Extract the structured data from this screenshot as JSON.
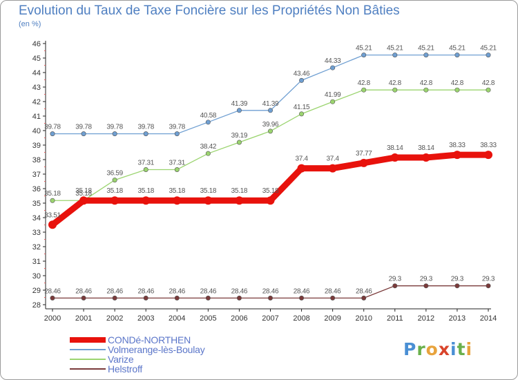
{
  "title": "Evolution du Taux de Taxe Foncière sur les Propriétés Non Bâties",
  "subtitle": "(en %)",
  "logo": {
    "text": "Proxiti",
    "letters": [
      {
        "char": "P",
        "color": "#4a8fd4"
      },
      {
        "char": "r",
        "color": "#6ab04c"
      },
      {
        "char": "o",
        "color": "#e8a33d"
      },
      {
        "char": "x",
        "color": "#d9442b"
      },
      {
        "char": "i",
        "color": "#4a8fd4"
      },
      {
        "char": "t",
        "color": "#6ab04c"
      },
      {
        "char": "i",
        "color": "#e8a33d"
      }
    ]
  },
  "chart_data": {
    "type": "line",
    "title": "Evolution du Taux de Taxe Foncière sur les Propriétés Non Bâties",
    "ylabel": "(en %)",
    "xlabel": "",
    "ylim": [
      28,
      46
    ],
    "ytick_step": 1,
    "grid": false,
    "legend_position": "bottom-left",
    "x": [
      "2000",
      "2001",
      "2002",
      "2003",
      "2004",
      "2005",
      "2006",
      "2007",
      "2008",
      "2009",
      "2010",
      "2011",
      "2012",
      "2013",
      "2014"
    ],
    "series": [
      {
        "name": "CONDé-NORTHEN",
        "color": "#e8120c",
        "emphasis": true,
        "values": [
          33.51,
          35.18,
          35.18,
          35.18,
          35.18,
          35.18,
          35.18,
          35.18,
          37.4,
          37.4,
          37.77,
          38.14,
          38.14,
          38.33,
          38.33
        ],
        "labels": [
          "33.51",
          "35.18",
          "35.18",
          "35.18",
          "35.18",
          "35.18",
          "35.18",
          "35.18",
          "37.4",
          "37.4",
          "37.77",
          "38.14",
          "38.14",
          "38.33",
          "38.33"
        ]
      },
      {
        "name": "Volmerange-lès-Boulay",
        "color": "#6f9fd2",
        "emphasis": false,
        "values": [
          39.78,
          39.78,
          39.78,
          39.78,
          39.78,
          40.58,
          41.39,
          41.39,
          43.46,
          44.33,
          45.21,
          45.21,
          45.21,
          45.21,
          45.21
        ],
        "labels": [
          "39.78",
          "39.78",
          "39.78",
          "39.78",
          "39.78",
          "40.58",
          "41.39",
          "41.39",
          "43.46",
          "44.33",
          "45.21",
          "45.21",
          "45.21",
          "45.21",
          "45.21"
        ]
      },
      {
        "name": "Varize",
        "color": "#9bd46f",
        "emphasis": false,
        "values": [
          35.18,
          35.18,
          36.59,
          37.31,
          37.31,
          38.42,
          39.19,
          39.96,
          41.15,
          41.99,
          42.8,
          42.8,
          42.8,
          42.8,
          42.8
        ],
        "labels": [
          "35.18",
          "35.18",
          "36.59",
          "37.31",
          "37.31",
          "38.42",
          "39.19",
          "39.96",
          "41.15",
          "41.99",
          "42.8",
          "42.8",
          "42.8",
          "42.8",
          "42.8"
        ]
      },
      {
        "name": "Helstroff",
        "color": "#7a3a3a",
        "emphasis": false,
        "values": [
          28.46,
          28.46,
          28.46,
          28.46,
          28.46,
          28.46,
          28.46,
          28.46,
          28.46,
          28.46,
          28.46,
          29.3,
          29.3,
          29.3,
          29.3
        ],
        "labels": [
          "28.46",
          "28.46",
          "28.46",
          "28.46",
          "28.46",
          "28.46",
          "28.46",
          "28.46",
          "28.46",
          "28.46",
          "28.46",
          "29.3",
          "29.3",
          "29.3",
          "29.3"
        ]
      }
    ]
  }
}
